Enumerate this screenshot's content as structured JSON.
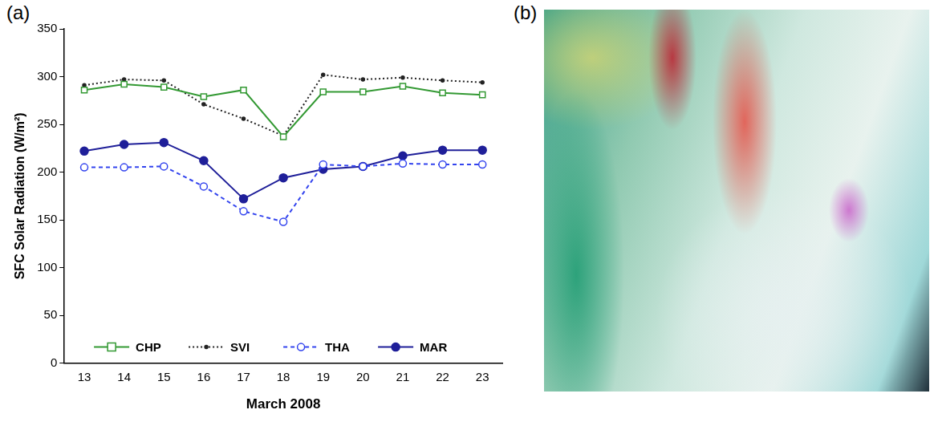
{
  "panels": [
    {
      "label": "(a)"
    },
    {
      "label": "(b)"
    }
  ],
  "chart_data": {
    "type": "line",
    "x_label": "March 2008",
    "y_label": "SFC Solar Radiation (W/m²)",
    "categories": [
      "13",
      "14",
      "15",
      "16",
      "17",
      "18",
      "19",
      "20",
      "21",
      "22",
      "23"
    ],
    "ylim": [
      0,
      350
    ],
    "yticks": [
      0,
      50,
      100,
      150,
      200,
      250,
      300,
      350
    ],
    "grid": false,
    "legend": "lower center",
    "series": [
      {
        "name": "CHP",
        "color": "#339933",
        "marker": "square_open",
        "line_style": "solid",
        "values": [
          286,
          292,
          289,
          279,
          286,
          237,
          284,
          284,
          290,
          283,
          281
        ]
      },
      {
        "name": "SVI",
        "color": "#222222",
        "marker": "dot",
        "line_style": "dotted",
        "values": [
          291,
          297,
          296,
          271,
          256,
          238,
          302,
          297,
          299,
          296,
          294
        ]
      },
      {
        "name": "THA",
        "color": "#3344ee",
        "marker": "circle_open",
        "line_style": "dashed",
        "values": [
          205,
          205,
          206,
          185,
          159,
          148,
          208,
          206,
          209,
          208,
          208
        ]
      },
      {
        "name": "MAR",
        "color": "#1f1f99",
        "marker": "circle",
        "line_style": "solid",
        "values": [
          222,
          229,
          231,
          212,
          172,
          194,
          203,
          206,
          217,
          223,
          223
        ]
      }
    ]
  }
}
